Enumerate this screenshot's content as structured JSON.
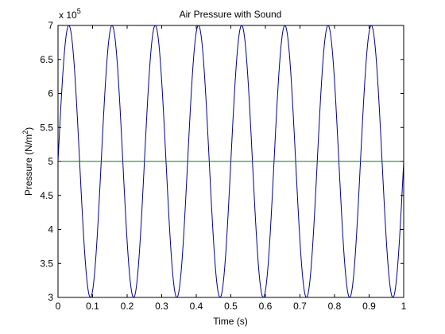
{
  "chart_data": {
    "type": "line",
    "title": "Air Pressure with Sound",
    "xlabel": "Time (s)",
    "ylabel_main": "Pressure (N/m",
    "ylabel_sup": "2",
    "ylabel_end": ")",
    "xlim": [
      0,
      1
    ],
    "ylim": [
      3,
      7
    ],
    "y_scale_exponent_base": "x 10",
    "y_scale_exponent_power": "5",
    "x_tick_values": [
      0,
      0.1,
      0.2,
      0.3,
      0.4,
      0.5,
      0.6,
      0.7,
      0.8,
      0.9,
      1
    ],
    "x_tick_labels": [
      "0",
      "0.1",
      "0.2",
      "0.3",
      "0.4",
      "0.5",
      "0.6",
      "0.7",
      "0.8",
      "0.9",
      "1"
    ],
    "y_tick_values": [
      3,
      3.5,
      4,
      4.5,
      5,
      5.5,
      6,
      6.5,
      7
    ],
    "y_tick_labels": [
      "3",
      "3.5",
      "4",
      "4.5",
      "5",
      "5.5",
      "6",
      "6.5",
      "7"
    ],
    "grid": false,
    "series": [
      {
        "kind": "sinusoid",
        "color": "#00008B",
        "mean": 5,
        "amplitude": 2,
        "frequency_hz": 8,
        "phase_rad": 0,
        "x_range": [
          0,
          1
        ],
        "samples": 1200
      },
      {
        "kind": "constant",
        "color": "#008000",
        "value": 5,
        "x_range": [
          0,
          1
        ]
      }
    ]
  }
}
